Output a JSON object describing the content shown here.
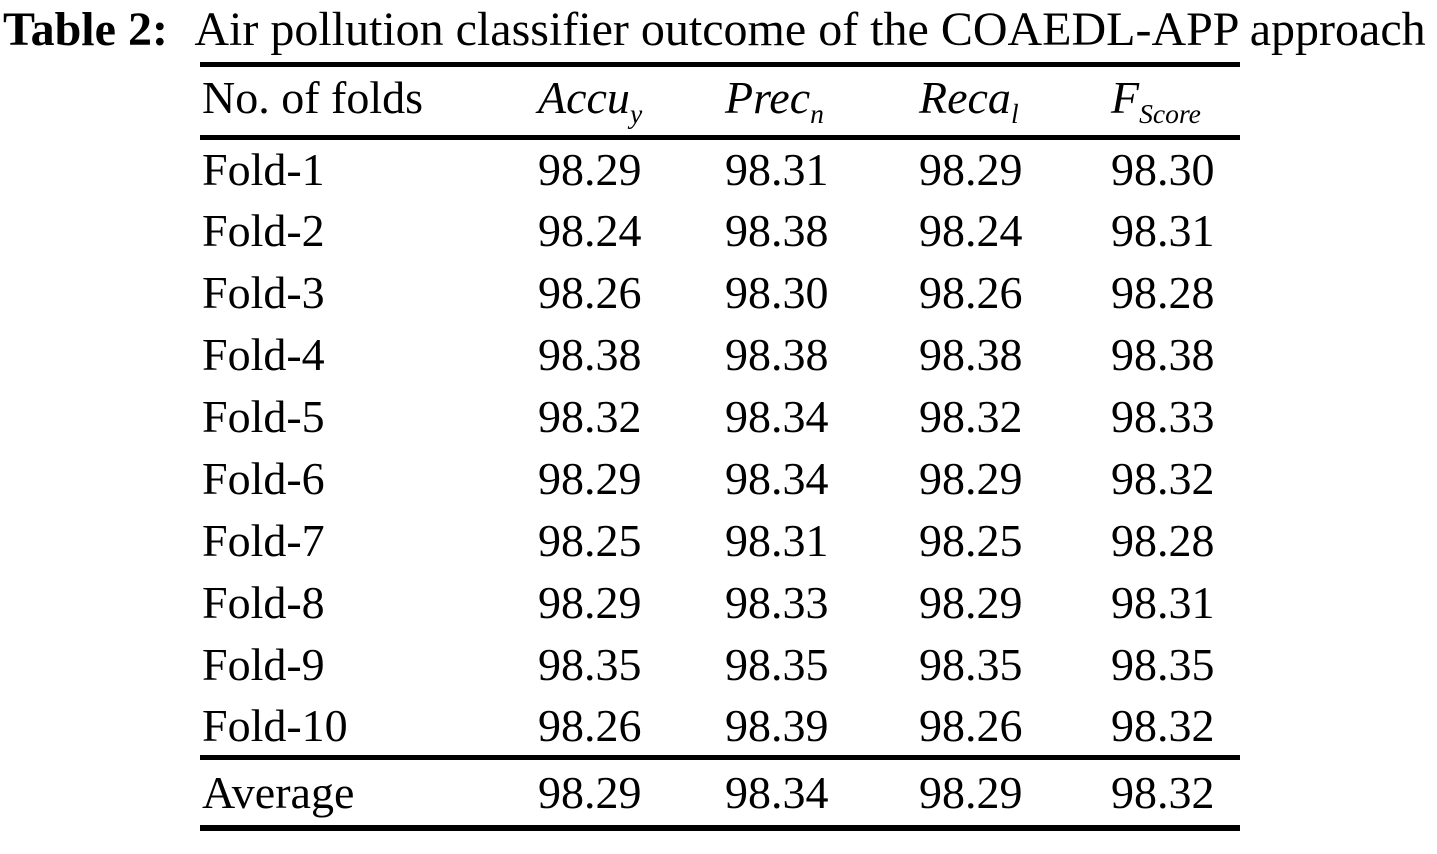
{
  "caption": {
    "label": "Table 2:",
    "text": "Air pollution classifier outcome of the COAEDL-APP approach"
  },
  "table": {
    "headers": [
      {
        "main": "No. of folds",
        "sub": ""
      },
      {
        "main": "Accu",
        "sub": "y"
      },
      {
        "main": "Prec",
        "sub": "n"
      },
      {
        "main": "Reca",
        "sub": "l"
      },
      {
        "main": "F",
        "sub": "Score"
      }
    ],
    "rows": [
      [
        "Fold-1",
        "98.29",
        "98.31",
        "98.29",
        "98.30"
      ],
      [
        "Fold-2",
        "98.24",
        "98.38",
        "98.24",
        "98.31"
      ],
      [
        "Fold-3",
        "98.26",
        "98.30",
        "98.26",
        "98.28"
      ],
      [
        "Fold-4",
        "98.38",
        "98.38",
        "98.38",
        "98.38"
      ],
      [
        "Fold-5",
        "98.32",
        "98.34",
        "98.32",
        "98.33"
      ],
      [
        "Fold-6",
        "98.29",
        "98.34",
        "98.29",
        "98.32"
      ],
      [
        "Fold-7",
        "98.25",
        "98.31",
        "98.25",
        "98.28"
      ],
      [
        "Fold-8",
        "98.29",
        "98.33",
        "98.29",
        "98.31"
      ],
      [
        "Fold-9",
        "98.35",
        "98.35",
        "98.35",
        "98.35"
      ],
      [
        "Fold-10",
        "98.26",
        "98.39",
        "98.26",
        "98.32"
      ]
    ],
    "average": [
      "Average",
      "98.29",
      "98.34",
      "98.29",
      "98.32"
    ]
  }
}
